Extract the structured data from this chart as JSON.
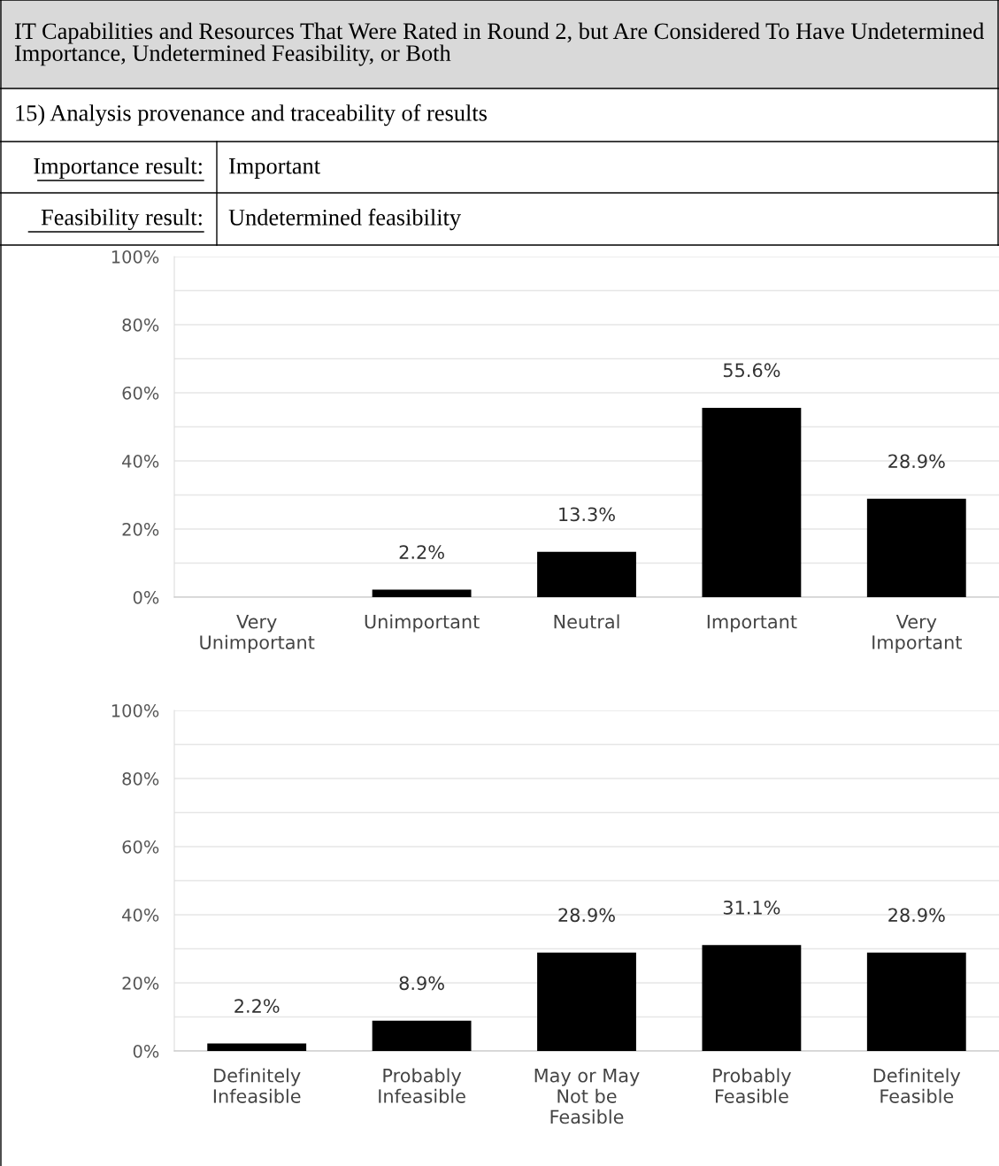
{
  "chart_data": [
    {
      "type": "bar",
      "title": "IT Capabilities and Resources That Were Rated in Round 2, but Are Considered To Have Undetermined Importance, Undetermined Feasibility, or Both",
      "subtitle": "15) Analysis provenance and traceability of results",
      "annotations": [
        "Importance result:",
        "Important",
        "Feasibility result:",
        "Undetermined feasibility"
      ],
      "categories": [
        "Very\nUnimportant",
        "Unimportant",
        "Neutral",
        "Important",
        "Very\nImportant"
      ],
      "values": [
        0,
        2.2,
        13.3,
        55.6,
        28.9
      ],
      "value_labels": [
        null,
        "2.2%",
        "13.3%",
        "55.6%",
        "28.9%"
      ],
      "color": "#000000",
      "ylim": [
        0,
        100
      ],
      "yticks": [
        {
          "value": 0,
          "label": "0%"
        },
        {
          "value": 10,
          "label": null
        },
        {
          "value": 20,
          "label": "20%"
        },
        {
          "value": 30,
          "label": null
        },
        {
          "value": 40,
          "label": "40%"
        },
        {
          "value": 50,
          "label": null
        },
        {
          "value": 60,
          "label": "60%"
        },
        {
          "value": 70,
          "label": null
        },
        {
          "value": 80,
          "label": "80%"
        },
        {
          "value": 90,
          "label": null
        },
        {
          "value": 100,
          "label": "100%"
        }
      ],
      "grid": "y"
    },
    {
      "type": "bar",
      "categories": [
        "Definitely\nInfeasible",
        "Probably\nInfeasible",
        "May or May\nNot be\nFeasible",
        "Probably\nFeasible",
        "Definitely\nFeasible"
      ],
      "values": [
        2.2,
        8.9,
        28.9,
        31.1,
        28.9
      ],
      "value_labels": [
        "2.2%",
        "8.9%",
        "28.9%",
        "31.1%",
        "28.9%"
      ],
      "color": "#000000",
      "ylim": [
        0,
        100
      ],
      "yticks": [
        {
          "value": 0,
          "label": "0%"
        },
        {
          "value": 10,
          "label": null
        },
        {
          "value": 20,
          "label": "20%"
        },
        {
          "value": 30,
          "label": null
        },
        {
          "value": 40,
          "label": "40%"
        },
        {
          "value": 50,
          "label": null
        },
        {
          "value": 60,
          "label": "60%"
        },
        {
          "value": 70,
          "label": null
        },
        {
          "value": 80,
          "label": "80%"
        },
        {
          "value": 90,
          "label": null
        },
        {
          "value": 100,
          "label": "100%"
        }
      ],
      "grid": "y"
    }
  ]
}
